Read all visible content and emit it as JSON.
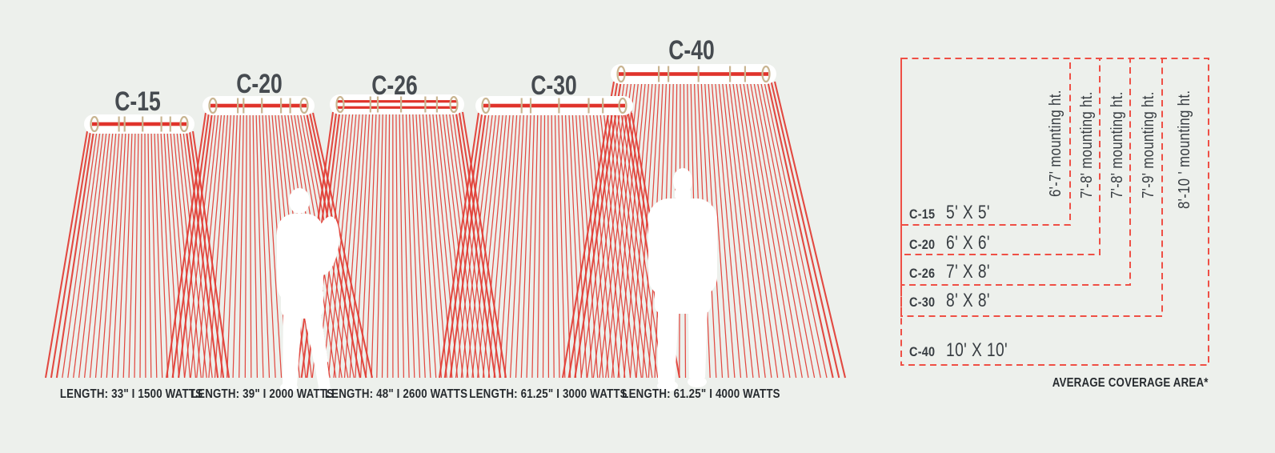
{
  "colors": {
    "background": "#edf0ec",
    "ray_red": "#e23b33",
    "heater_red": "#e0332b",
    "box_red": "#ef4f45",
    "bracket_tan": "#c9b591",
    "silhouette": "#ffffff",
    "text_dark": "#383d42"
  },
  "heaters": [
    {
      "model": "C-15",
      "spec": "LENGTH: 33\" I 1500 WATTS"
    },
    {
      "model": "C-20",
      "spec": "LENGTH: 39\" I 2000 WATTS"
    },
    {
      "model": "C-26",
      "spec": "LENGTH: 48\" I 2600 WATTS"
    },
    {
      "model": "C-30",
      "spec": "LENGTH: 61.25\" I 3000 WATTS"
    },
    {
      "model": "C-40",
      "spec": "LENGTH: 61.25\" I 4000 WATTS"
    }
  ],
  "coverage_chart": {
    "caption": "AVERAGE COVERAGE AREA*",
    "rows": [
      {
        "model": "C-15",
        "area": "5' X 5'",
        "mounting_height": "6'-7' mounting ht."
      },
      {
        "model": "C-20",
        "area": "6' X 6'",
        "mounting_height": "7'-8' mounting ht."
      },
      {
        "model": "C-26",
        "area": "7' X 8'",
        "mounting_height": "7'-8' mounting ht."
      },
      {
        "model": "C-30",
        "area": "8' X 8'",
        "mounting_height": "7'-9' mounting ht."
      },
      {
        "model": "C-40",
        "area": "10' X 10'",
        "mounting_height": "8'-10 ' mounting ht."
      }
    ]
  }
}
